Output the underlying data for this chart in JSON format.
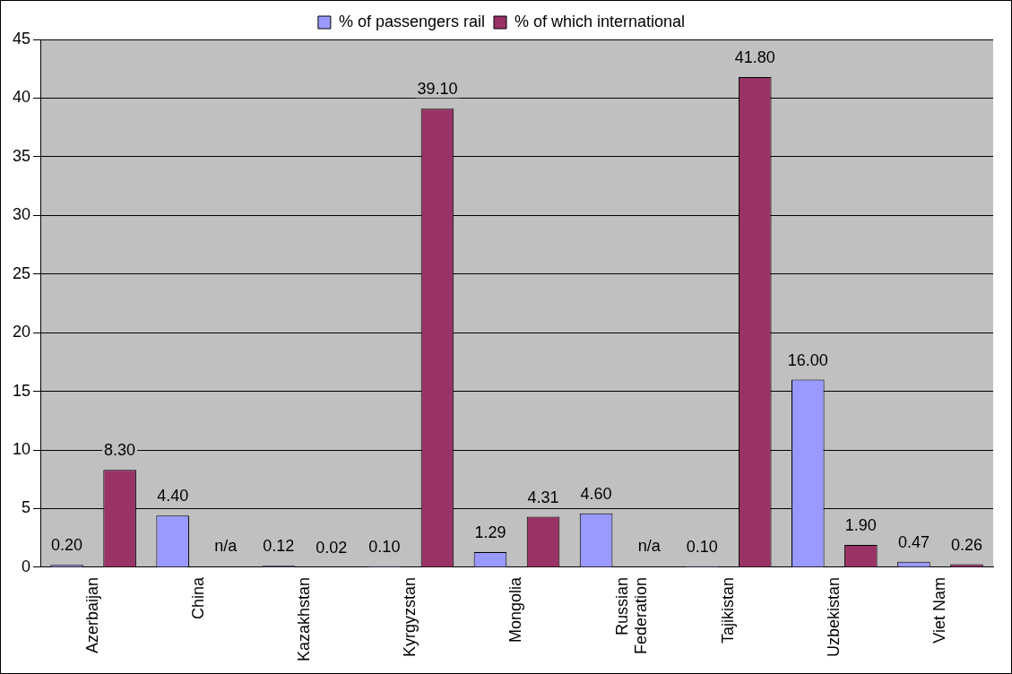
{
  "chart_data": {
    "type": "bar",
    "categories": [
      "Azerbaijan",
      "China",
      "Kazakhstan",
      "Kyrgyzstan",
      "Mongolia",
      "Russian Federation",
      "Tajikistan",
      "Uzbekistan",
      "Viet Nam"
    ],
    "series": [
      {
        "name": "% of passengers rail",
        "color": "#9999ff",
        "values": [
          0.2,
          4.4,
          0.12,
          0.1,
          1.29,
          4.6,
          0.1,
          16.0,
          0.47
        ],
        "value_labels": [
          "0.20",
          "4.40",
          "0.12",
          "0.10",
          "1.29",
          "4.60",
          "0.10",
          "16.00",
          "0.47"
        ]
      },
      {
        "name": "% of which international",
        "color": "#993366",
        "values": [
          8.3,
          null,
          0.02,
          39.1,
          4.31,
          null,
          41.8,
          1.9,
          0.26
        ],
        "value_labels": [
          "8.30",
          "n/a",
          "0.02",
          "39.10",
          "4.31",
          "n/a",
          "41.80",
          "1.90",
          "0.26"
        ]
      }
    ],
    "ylim": [
      0,
      45
    ],
    "yticks": [
      0,
      5,
      10,
      15,
      20,
      25,
      30,
      35,
      40,
      45
    ],
    "grid": "y",
    "legend": "top"
  }
}
